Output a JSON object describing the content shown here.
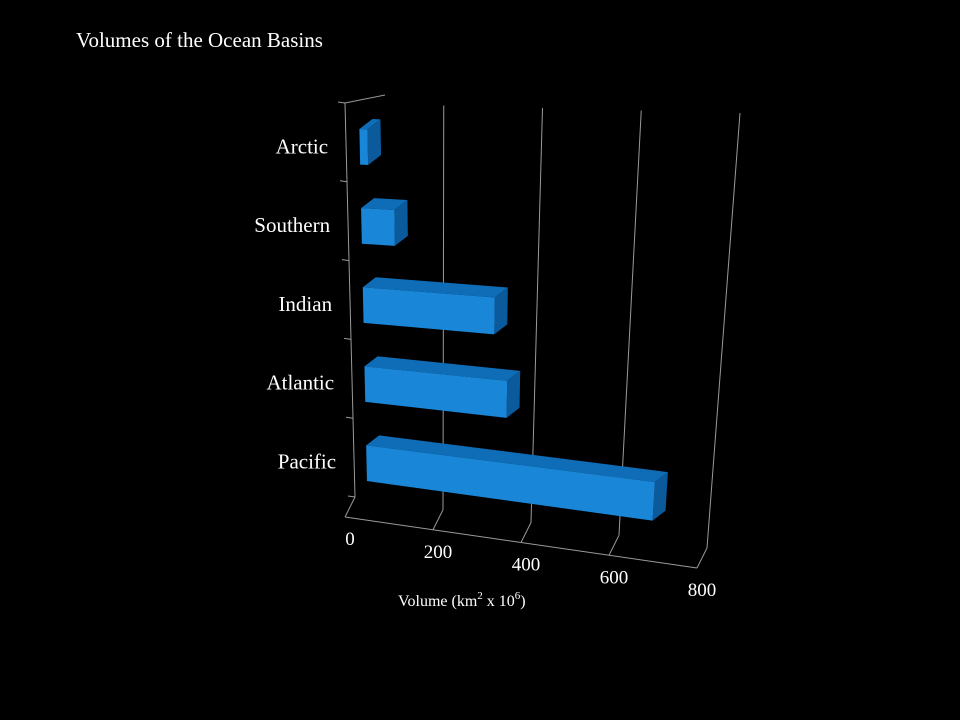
{
  "chart_data": {
    "type": "bar",
    "orientation": "horizontal",
    "title": "Volumes of the Ocean Basins",
    "categories": [
      "Arctic",
      "Southern",
      "Indian",
      "Atlantic",
      "Pacific"
    ],
    "values": [
      17,
      72,
      292,
      323,
      669
    ],
    "xlim": [
      0,
      800
    ],
    "xticks": [
      0,
      200,
      400,
      600,
      800
    ],
    "xlabel_parts": {
      "prefix": "Volume (km",
      "sup1": "2",
      "middle": " x 10",
      "sup2": "6",
      "suffix": ")"
    },
    "grid": true,
    "bar_color": "#1a86d8",
    "bar_top_color": "#0f6db8",
    "bar_end_color": "#0a5a9c",
    "background": "#000000",
    "grid_color": "#9a9a9a"
  }
}
